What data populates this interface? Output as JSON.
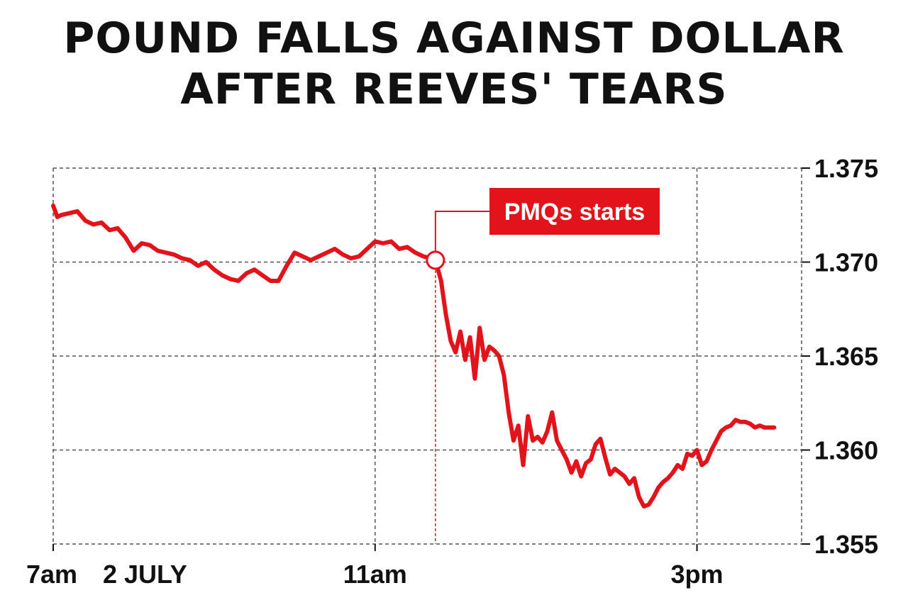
{
  "chart_data": {
    "type": "line",
    "title_lines": [
      "POUND FALLS AGAINST DOLLAR",
      "AFTER REEVES' TEARS"
    ],
    "date_label": "2 JULY",
    "y_axis_side": "right",
    "ylim": [
      1.355,
      1.375
    ],
    "y_ticks": [
      {
        "value": 1.375,
        "label": "1.375"
      },
      {
        "value": 1.37,
        "label": "1.370"
      },
      {
        "value": 1.365,
        "label": "1.365"
      },
      {
        "value": 1.36,
        "label": "1.360"
      },
      {
        "value": 1.355,
        "label": "1.355"
      }
    ],
    "xlim": [
      7.0,
      16.3
    ],
    "x_ticks": [
      {
        "value": 7,
        "label": "7am"
      },
      {
        "value": 11,
        "label": "11am"
      },
      {
        "value": 15,
        "label": "3pm"
      }
    ],
    "grid": true,
    "line_color": "#e3131b",
    "annotation": {
      "label": "PMQs starts",
      "x": 11.75,
      "y": 1.3701
    },
    "series": [
      {
        "x": [
          7.0,
          7.05,
          7.1,
          7.2,
          7.3,
          7.4,
          7.5,
          7.6,
          7.7,
          7.8,
          7.9,
          8.0,
          8.1,
          8.2,
          8.3,
          8.4,
          8.5,
          8.6,
          8.7,
          8.8,
          8.9,
          9.0,
          9.1,
          9.2,
          9.3,
          9.4,
          9.5,
          9.6,
          9.7,
          9.8,
          9.9,
          10.0,
          10.1,
          10.2,
          10.3,
          10.4,
          10.5,
          10.6,
          10.7,
          10.8,
          10.9,
          11.0,
          11.1,
          11.2,
          11.3,
          11.4,
          11.5,
          11.6,
          11.7,
          11.75,
          11.82,
          11.88,
          11.94,
          12.0,
          12.06,
          12.12,
          12.18,
          12.24,
          12.3,
          12.36,
          12.42,
          12.48,
          12.54,
          12.6,
          12.66,
          12.72,
          12.78,
          12.84,
          12.9,
          12.96,
          13.02,
          13.08,
          13.14,
          13.2,
          13.26,
          13.32,
          13.38,
          13.44,
          13.5,
          13.56,
          13.62,
          13.68,
          13.74,
          13.8,
          13.86,
          13.92,
          13.98,
          14.04,
          14.1,
          14.16,
          14.22,
          14.28,
          14.34,
          14.4,
          14.46,
          14.52,
          14.58,
          14.64,
          14.7,
          14.76,
          14.82,
          14.88,
          14.94,
          15.0,
          15.06,
          15.12,
          15.18,
          15.24,
          15.3,
          15.36,
          15.42,
          15.48,
          15.54,
          15.6,
          15.66,
          15.72,
          15.78,
          15.84,
          15.9,
          15.96
        ],
        "y": [
          1.373,
          1.3724,
          1.3725,
          1.3726,
          1.3727,
          1.3722,
          1.372,
          1.3721,
          1.3717,
          1.3718,
          1.3713,
          1.3706,
          1.371,
          1.3709,
          1.3706,
          1.3705,
          1.3704,
          1.3702,
          1.3701,
          1.3698,
          1.37,
          1.3696,
          1.3693,
          1.3691,
          1.369,
          1.3694,
          1.3696,
          1.3693,
          1.369,
          1.369,
          1.3698,
          1.3705,
          1.3703,
          1.3701,
          1.3703,
          1.3705,
          1.3707,
          1.3704,
          1.3702,
          1.3703,
          1.3707,
          1.3711,
          1.371,
          1.3711,
          1.3707,
          1.3708,
          1.3705,
          1.3703,
          1.3702,
          1.3701,
          1.369,
          1.3672,
          1.3658,
          1.3652,
          1.3663,
          1.3648,
          1.366,
          1.3638,
          1.3665,
          1.3648,
          1.3655,
          1.3653,
          1.365,
          1.364,
          1.362,
          1.3605,
          1.3613,
          1.3592,
          1.3618,
          1.3605,
          1.3607,
          1.3604,
          1.361,
          1.362,
          1.3605,
          1.36,
          1.3595,
          1.3588,
          1.3594,
          1.3586,
          1.3593,
          1.3595,
          1.3603,
          1.3606,
          1.3596,
          1.3587,
          1.359,
          1.3588,
          1.3586,
          1.3582,
          1.3585,
          1.3575,
          1.357,
          1.3571,
          1.3575,
          1.358,
          1.3583,
          1.3585,
          1.3588,
          1.3592,
          1.359,
          1.3598,
          1.3597,
          1.36,
          1.3592,
          1.3594,
          1.36,
          1.3605,
          1.361,
          1.3612,
          1.3613,
          1.3616,
          1.3615,
          1.3615,
          1.3614,
          1.3612,
          1.3613,
          1.3612,
          1.3612,
          1.3612
        ]
      }
    ]
  }
}
